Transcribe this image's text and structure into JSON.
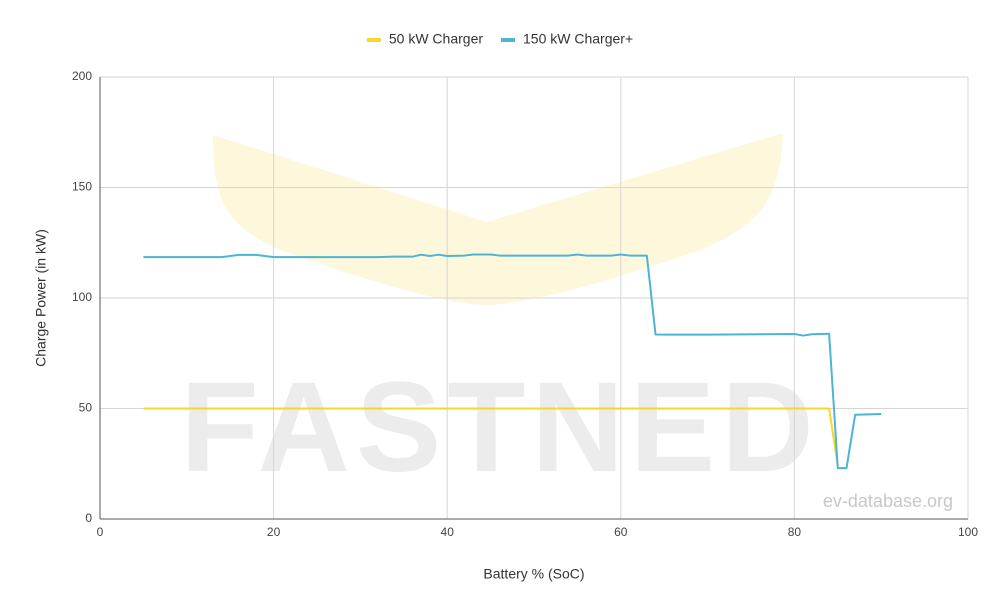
{
  "chart_data": {
    "type": "line",
    "xlabel": "Battery % (SoC)",
    "ylabel": "Charge Power (in kW)",
    "watermark": "FASTNED",
    "source": "ev-database.org",
    "xlim": [
      0,
      100
    ],
    "xticks": [
      0,
      20,
      40,
      60,
      80,
      100
    ],
    "ylim": [
      0,
      200
    ],
    "yticks": [
      0,
      50,
      100,
      150,
      200
    ],
    "grid": true,
    "legend": "top",
    "series": [
      {
        "name": "50 kW Charger",
        "color": "#f8d62b",
        "x": [
          5,
          84,
          85
        ],
        "values": [
          50,
          50,
          24
        ]
      },
      {
        "name": "150 kW Charger+",
        "color": "#4db4d3",
        "x": [
          5,
          14,
          16,
          18,
          20,
          32,
          34,
          36,
          37,
          38,
          39,
          40,
          42,
          43,
          45,
          46,
          54,
          55,
          56,
          59,
          60,
          61,
          63,
          64,
          65,
          70,
          76,
          80,
          81,
          82,
          84,
          85,
          86,
          87,
          90
        ],
        "values": [
          118.5,
          118.5,
          119.5,
          119.5,
          118.5,
          118.5,
          118.7,
          118.7,
          119.6,
          119,
          119.6,
          119,
          119.2,
          119.7,
          119.7,
          119.2,
          119.2,
          119.7,
          119.2,
          119.2,
          119.7,
          119.2,
          119.2,
          83.5,
          83.4,
          83.4,
          83.6,
          83.7,
          83,
          83.6,
          83.8,
          23,
          23,
          47.2,
          47.5
        ]
      }
    ]
  }
}
